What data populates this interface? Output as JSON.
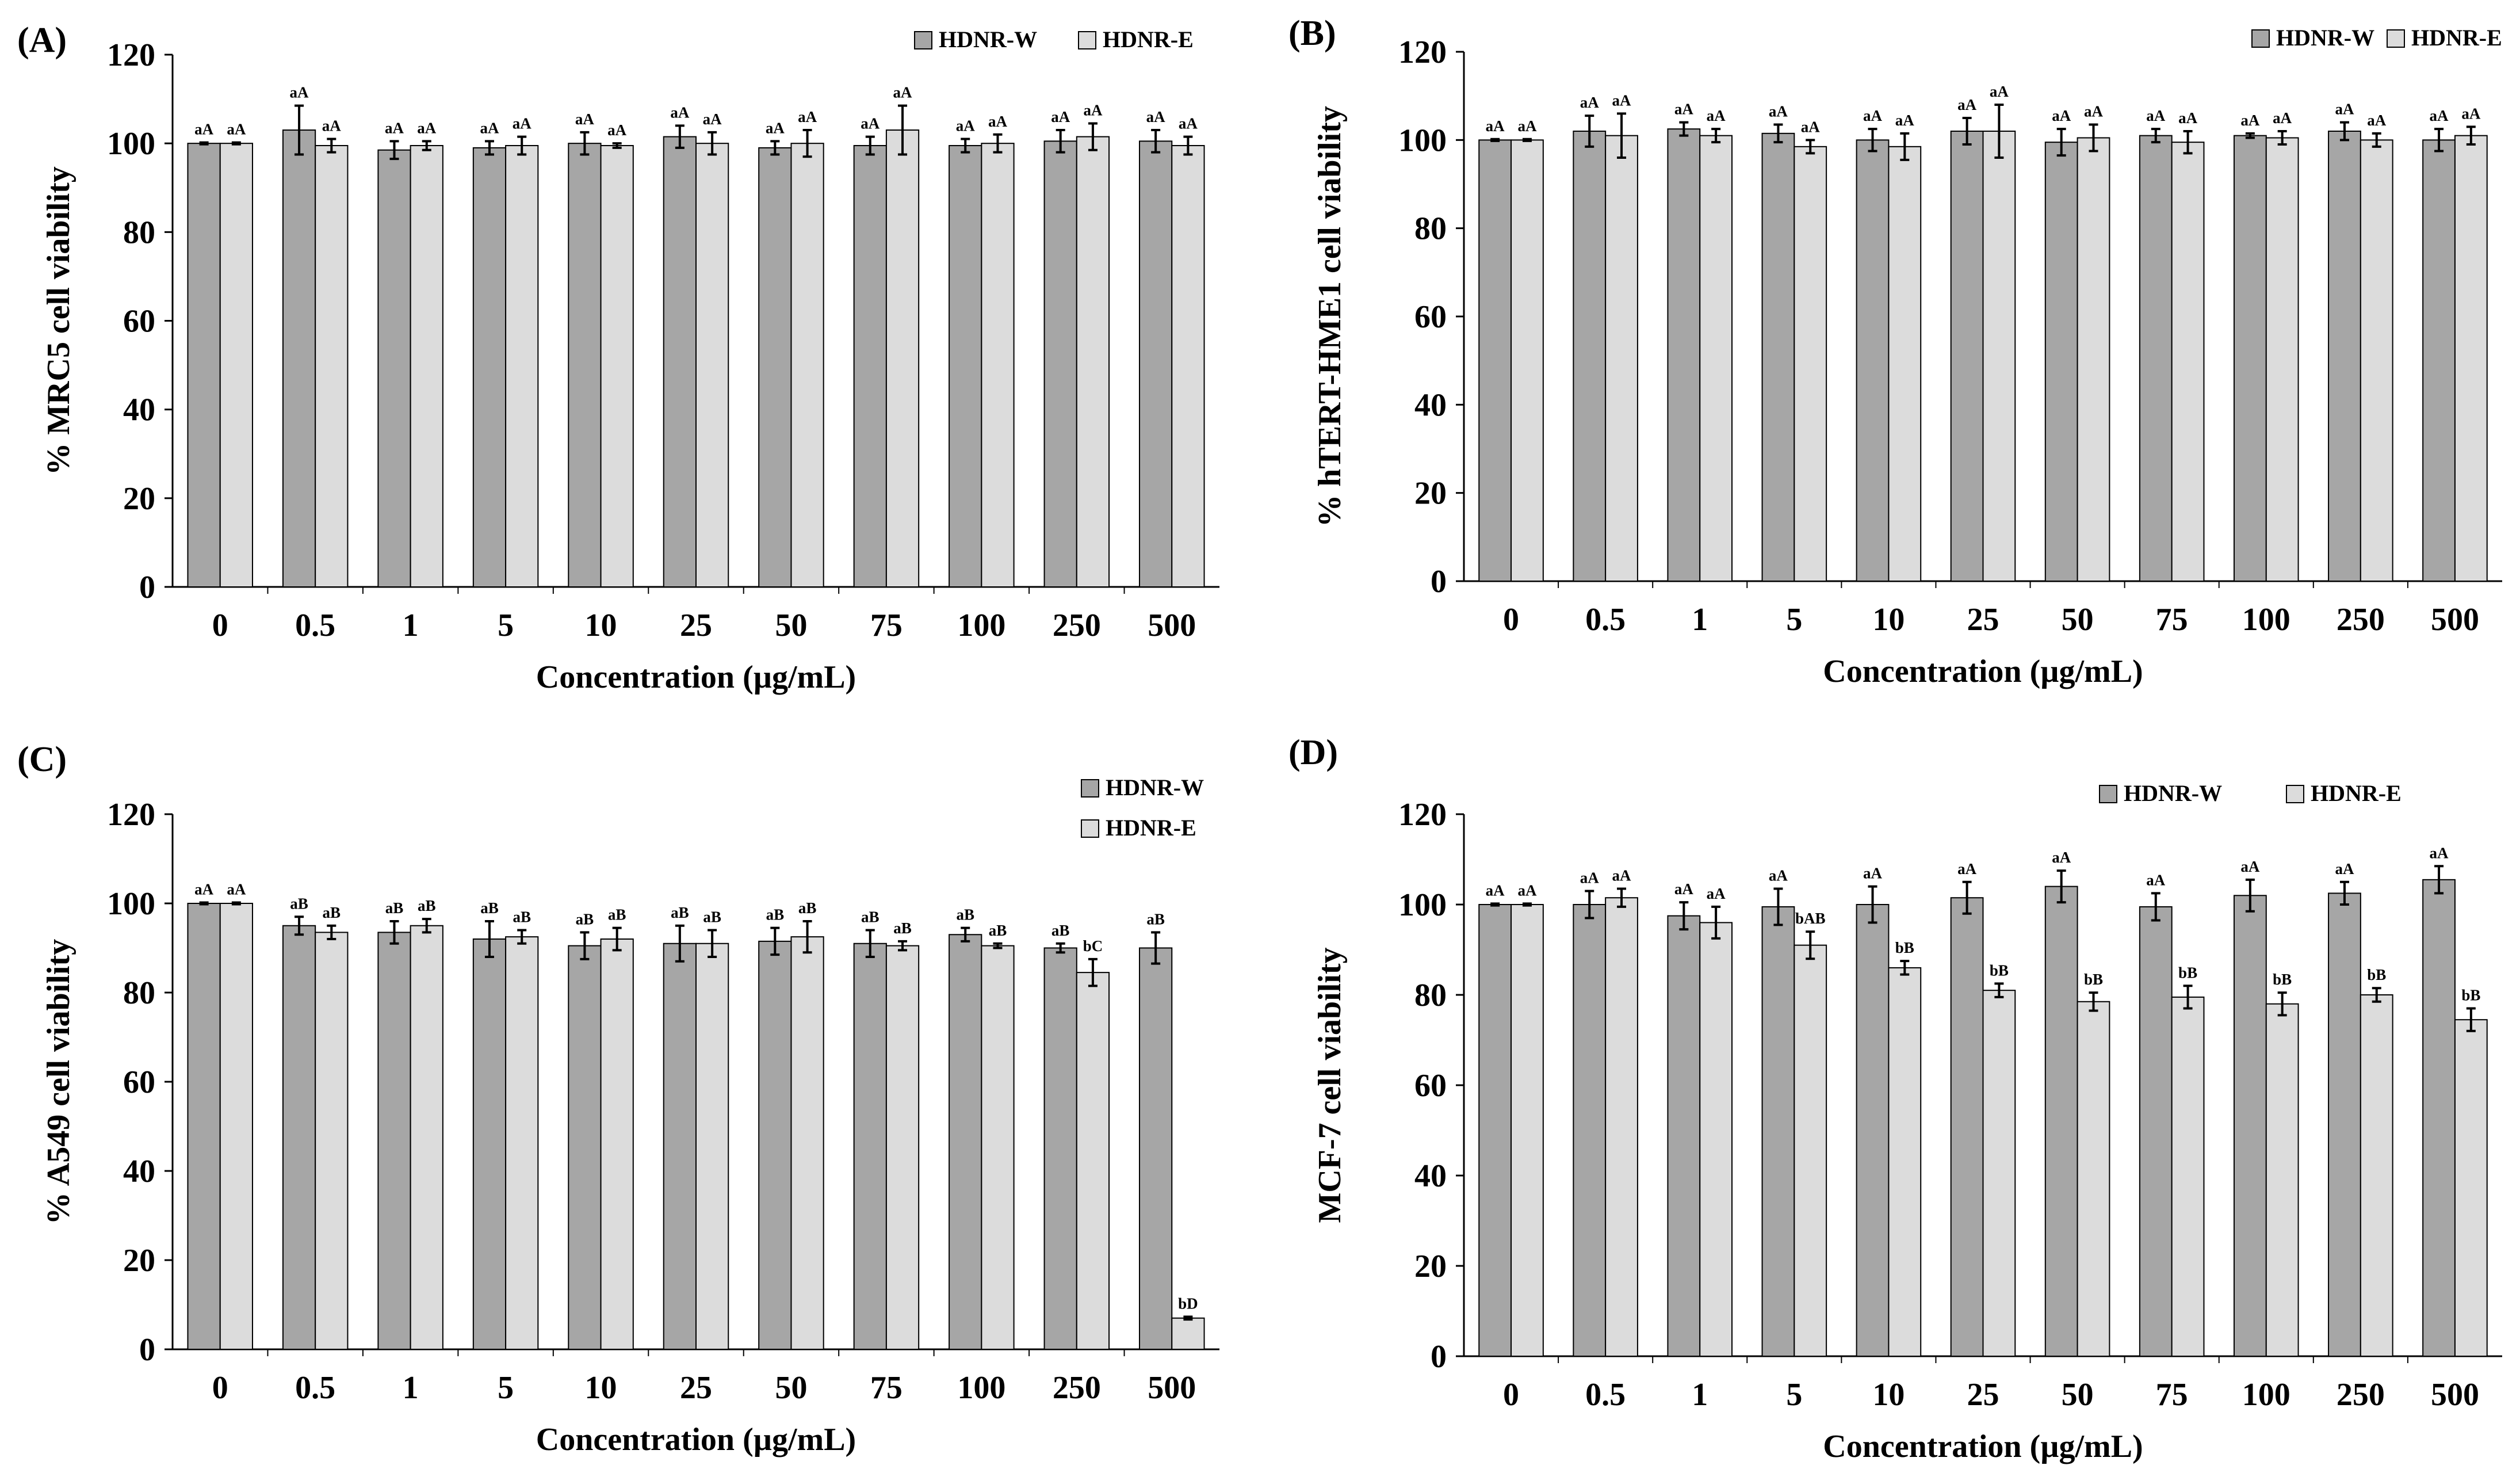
{
  "colors": {
    "w": "#a6a6a6",
    "e": "#dcdcdc",
    "axis": "#000000"
  },
  "chart_data": [
    {
      "type": "bar",
      "panel": "(A)",
      "xlabel": "Concentration (µg/mL)",
      "ylabel": "% MRC5 cell viability",
      "ylim": [
        0,
        120
      ],
      "yticks": [
        0,
        20,
        40,
        60,
        80,
        100,
        120
      ],
      "grid": false,
      "legend": "top-right",
      "categories": [
        "0",
        "0.5",
        "1",
        "5",
        "10",
        "25",
        "50",
        "75",
        "100",
        "250",
        "500"
      ],
      "series": [
        {
          "name": "HDNR-W",
          "color": "#a6a6a6",
          "values": [
            100,
            103,
            98.5,
            99,
            100,
            101.5,
            99,
            99.5,
            99.5,
            100.5,
            100.5
          ],
          "errors": [
            0.2,
            5.5,
            2,
            1.5,
            2.5,
            2.5,
            1.5,
            2,
            1.5,
            2.5,
            2.5
          ],
          "letters": [
            "aA",
            "aA",
            "aA",
            "aA",
            "aA",
            "aA",
            "aA",
            "aA",
            "aA",
            "aA",
            "aA"
          ]
        },
        {
          "name": "HDNR-E",
          "color": "#dcdcdc",
          "values": [
            100,
            99.5,
            99.5,
            99.5,
            99.5,
            100,
            100,
            103,
            100,
            101.5,
            99.5
          ],
          "errors": [
            0.2,
            1.5,
            1,
            2,
            0.5,
            2.5,
            3,
            5.5,
            2,
            3,
            2
          ],
          "letters": [
            "aA",
            "aA",
            "aA",
            "aA",
            "aA",
            "aA",
            "aA",
            "aA",
            "aA",
            "aA",
            "aA"
          ]
        }
      ]
    },
    {
      "type": "bar",
      "panel": "(B)",
      "xlabel": "Concentration (µg/mL)",
      "ylabel": "% hTERT-HME1 cell viability",
      "ylim": [
        0,
        120
      ],
      "yticks": [
        0,
        20,
        40,
        60,
        80,
        100,
        120
      ],
      "grid": false,
      "legend": "top-right",
      "categories": [
        "0",
        "0.5",
        "1",
        "5",
        "10",
        "25",
        "50",
        "75",
        "100",
        "250",
        "500"
      ],
      "series": [
        {
          "name": "HDNR-W",
          "color": "#a6a6a6",
          "values": [
            100,
            102,
            102.5,
            101.5,
            100,
            102,
            99.5,
            101,
            101,
            102,
            100
          ],
          "errors": [
            0.2,
            3.5,
            1.5,
            2,
            2.5,
            3,
            3,
            1.5,
            0.5,
            2,
            2.5
          ],
          "letters": [
            "aA",
            "aA",
            "aA",
            "aA",
            "aA",
            "aA",
            "aA",
            "aA",
            "aA",
            "aA",
            "aA"
          ]
        },
        {
          "name": "HDNR-E",
          "color": "#dcdcdc",
          "values": [
            100,
            101,
            101,
            98.5,
            98.5,
            102,
            100.5,
            99.5,
            100.5,
            100,
            101
          ],
          "errors": [
            0.2,
            5,
            1.5,
            1.5,
            3,
            6,
            3,
            2.5,
            1.5,
            1.5,
            2
          ],
          "letters": [
            "aA",
            "aA",
            "aA",
            "aA",
            "aA",
            "aA",
            "aA",
            "aA",
            "aA",
            "aA",
            "aA"
          ]
        }
      ]
    },
    {
      "type": "bar",
      "panel": "(C)",
      "xlabel": "Concentration (µg/mL)",
      "ylabel": "% A549 cell viability",
      "ylim": [
        0,
        120
      ],
      "yticks": [
        0,
        20,
        40,
        60,
        80,
        100,
        120
      ],
      "grid": false,
      "legend": "top-right",
      "categories": [
        "0",
        "0.5",
        "1",
        "5",
        "10",
        "25",
        "50",
        "75",
        "100",
        "250",
        "500"
      ],
      "series": [
        {
          "name": "HDNR-W",
          "color": "#a6a6a6",
          "values": [
            100,
            95,
            93.5,
            92,
            90.5,
            91,
            91.5,
            91,
            93,
            90,
            90
          ],
          "errors": [
            0.2,
            2,
            2.5,
            4,
            3,
            4,
            3,
            3,
            1.5,
            1,
            3.5
          ],
          "letters": [
            "aA",
            "aB",
            "aB",
            "aB",
            "aB",
            "aB",
            "aB",
            "aB",
            "aB",
            "aB",
            "aB"
          ]
        },
        {
          "name": "HDNR-E",
          "color": "#dcdcdc",
          "values": [
            100,
            93.5,
            95,
            92.5,
            92,
            91,
            92.5,
            90.5,
            90.5,
            84.5,
            7
          ],
          "errors": [
            0.2,
            1.5,
            1.5,
            1.5,
            2.5,
            3,
            3.5,
            1,
            0.5,
            3,
            0.3
          ],
          "letters": [
            "aA",
            "aB",
            "aB",
            "aB",
            "aB",
            "aB",
            "aB",
            "aB",
            "aB",
            "bC",
            "bD"
          ]
        }
      ]
    },
    {
      "type": "bar",
      "panel": "(D)",
      "xlabel": "Concentration (µg/mL)",
      "ylabel": "MCF-7 cell viability",
      "ylim": [
        0,
        120
      ],
      "yticks": [
        0,
        20,
        40,
        60,
        80,
        100,
        120
      ],
      "grid": false,
      "legend": "top-right",
      "categories": [
        "0",
        "0.5",
        "1",
        "5",
        "10",
        "25",
        "50",
        "75",
        "100",
        "250",
        "500"
      ],
      "series": [
        {
          "name": "HDNR-W",
          "color": "#a6a6a6",
          "values": [
            100,
            100,
            97.5,
            99.5,
            100,
            101.5,
            104,
            99.5,
            102,
            102.5,
            105.5
          ],
          "errors": [
            0.2,
            3,
            3,
            4,
            4,
            3.5,
            3.5,
            3,
            3.5,
            2.5,
            3
          ],
          "letters": [
            "aA",
            "aA",
            "aA",
            "aA",
            "aA",
            "aA",
            "aA",
            "aA",
            "aA",
            "aA",
            "aA"
          ]
        },
        {
          "name": "HDNR-E",
          "color": "#dcdcdc",
          "values": [
            100,
            101.5,
            96,
            91,
            86,
            81,
            78.5,
            79.5,
            78,
            80,
            74.5
          ],
          "errors": [
            0.2,
            2,
            3.5,
            3,
            1.5,
            1.5,
            2,
            2.5,
            2.5,
            1.5,
            2.5
          ],
          "letters": [
            "aA",
            "aA",
            "aA",
            "bAB",
            "bB",
            "bB",
            "bB",
            "bB",
            "bB",
            "bB",
            "bB"
          ]
        }
      ]
    }
  ]
}
